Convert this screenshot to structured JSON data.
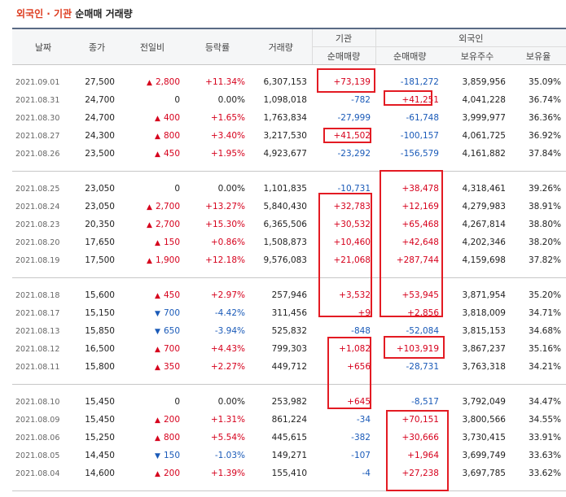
{
  "title": {
    "part1": "외국인 · 기관",
    "part2": " 순매매 거래량"
  },
  "headers": {
    "date": "날짜",
    "close": "종가",
    "change": "전일비",
    "rate": "등락률",
    "volume": "거래량",
    "institution": "기관",
    "foreign": "외국인",
    "inst_net": "순매매량",
    "foreign_net": "순매매량",
    "foreign_hold": "보유주수",
    "foreign_ratio": "보유율"
  },
  "groups": [
    [
      {
        "date": "2021.09.01",
        "close": "27,500",
        "dir": "up",
        "change": "2,800",
        "rate": "+11.34%",
        "volume": "6,307,153",
        "inst": "+73,139",
        "fnet": "-181,272",
        "hold": "3,859,956",
        "ratio": "35.09%"
      },
      {
        "date": "2021.08.31",
        "close": "24,700",
        "dir": "none",
        "change": "0",
        "rate": "0.00%",
        "volume": "1,098,018",
        "inst": "-782",
        "fnet": "+41,251",
        "hold": "4,041,228",
        "ratio": "36.74%"
      },
      {
        "date": "2021.08.30",
        "close": "24,700",
        "dir": "up",
        "change": "400",
        "rate": "+1.65%",
        "volume": "1,763,834",
        "inst": "-27,999",
        "fnet": "-61,748",
        "hold": "3,999,977",
        "ratio": "36.36%"
      },
      {
        "date": "2021.08.27",
        "close": "24,300",
        "dir": "up",
        "change": "800",
        "rate": "+3.40%",
        "volume": "3,217,530",
        "inst": "+41,502",
        "fnet": "-100,157",
        "hold": "4,061,725",
        "ratio": "36.92%"
      },
      {
        "date": "2021.08.26",
        "close": "23,500",
        "dir": "up",
        "change": "450",
        "rate": "+1.95%",
        "volume": "4,923,677",
        "inst": "-23,292",
        "fnet": "-156,579",
        "hold": "4,161,882",
        "ratio": "37.84%"
      }
    ],
    [
      {
        "date": "2021.08.25",
        "close": "23,050",
        "dir": "none",
        "change": "0",
        "rate": "0.00%",
        "volume": "1,101,835",
        "inst": "-10,731",
        "fnet": "+38,478",
        "hold": "4,318,461",
        "ratio": "39.26%"
      },
      {
        "date": "2021.08.24",
        "close": "23,050",
        "dir": "up",
        "change": "2,700",
        "rate": "+13.27%",
        "volume": "5,840,430",
        "inst": "+32,783",
        "fnet": "+12,169",
        "hold": "4,279,983",
        "ratio": "38.91%"
      },
      {
        "date": "2021.08.23",
        "close": "20,350",
        "dir": "up",
        "change": "2,700",
        "rate": "+15.30%",
        "volume": "6,365,506",
        "inst": "+30,532",
        "fnet": "+65,468",
        "hold": "4,267,814",
        "ratio": "38.80%"
      },
      {
        "date": "2021.08.20",
        "close": "17,650",
        "dir": "up",
        "change": "150",
        "rate": "+0.86%",
        "volume": "1,508,873",
        "inst": "+10,460",
        "fnet": "+42,648",
        "hold": "4,202,346",
        "ratio": "38.20%"
      },
      {
        "date": "2021.08.19",
        "close": "17,500",
        "dir": "up",
        "change": "1,900",
        "rate": "+12.18%",
        "volume": "9,576,083",
        "inst": "+21,068",
        "fnet": "+287,744",
        "hold": "4,159,698",
        "ratio": "37.82%"
      }
    ],
    [
      {
        "date": "2021.08.18",
        "close": "15,600",
        "dir": "up",
        "change": "450",
        "rate": "+2.97%",
        "volume": "257,946",
        "inst": "+3,532",
        "fnet": "+53,945",
        "hold": "3,871,954",
        "ratio": "35.20%"
      },
      {
        "date": "2021.08.17",
        "close": "15,150",
        "dir": "down",
        "change": "700",
        "rate": "-4.42%",
        "volume": "311,456",
        "inst": "+9",
        "fnet": "+2,856",
        "hold": "3,818,009",
        "ratio": "34.71%"
      },
      {
        "date": "2021.08.13",
        "close": "15,850",
        "dir": "down",
        "change": "650",
        "rate": "-3.94%",
        "volume": "525,832",
        "inst": "-848",
        "fnet": "-52,084",
        "hold": "3,815,153",
        "ratio": "34.68%"
      },
      {
        "date": "2021.08.12",
        "close": "16,500",
        "dir": "up",
        "change": "700",
        "rate": "+4.43%",
        "volume": "799,303",
        "inst": "+1,082",
        "fnet": "+103,919",
        "hold": "3,867,237",
        "ratio": "35.16%"
      },
      {
        "date": "2021.08.11",
        "close": "15,800",
        "dir": "up",
        "change": "350",
        "rate": "+2.27%",
        "volume": "449,712",
        "inst": "+656",
        "fnet": "-28,731",
        "hold": "3,763,318",
        "ratio": "34.21%"
      }
    ],
    [
      {
        "date": "2021.08.10",
        "close": "15,450",
        "dir": "none",
        "change": "0",
        "rate": "0.00%",
        "volume": "253,982",
        "inst": "+645",
        "fnet": "-8,517",
        "hold": "3,792,049",
        "ratio": "34.47%"
      },
      {
        "date": "2021.08.09",
        "close": "15,450",
        "dir": "up",
        "change": "200",
        "rate": "+1.31%",
        "volume": "861,224",
        "inst": "-34",
        "fnet": "+70,151",
        "hold": "3,800,566",
        "ratio": "34.55%"
      },
      {
        "date": "2021.08.06",
        "close": "15,250",
        "dir": "up",
        "change": "800",
        "rate": "+5.54%",
        "volume": "445,615",
        "inst": "-382",
        "fnet": "+30,666",
        "hold": "3,730,415",
        "ratio": "33.91%"
      },
      {
        "date": "2021.08.05",
        "close": "14,450",
        "dir": "down",
        "change": "150",
        "rate": "-1.03%",
        "volume": "149,271",
        "inst": "-107",
        "fnet": "+1,964",
        "hold": "3,699,749",
        "ratio": "33.63%"
      },
      {
        "date": "2021.08.04",
        "close": "14,600",
        "dir": "up",
        "change": "200",
        "rate": "+1.39%",
        "volume": "155,410",
        "inst": "-4",
        "fnet": "+27,238",
        "hold": "3,697,785",
        "ratio": "33.62%"
      }
    ]
  ],
  "colors": {
    "up": "#d6001c",
    "down": "#1a5ab8",
    "highlight": "#e31b23",
    "title_accent": "#dd3c1f"
  },
  "icons": {
    "up": "▲",
    "down": "▼"
  }
}
